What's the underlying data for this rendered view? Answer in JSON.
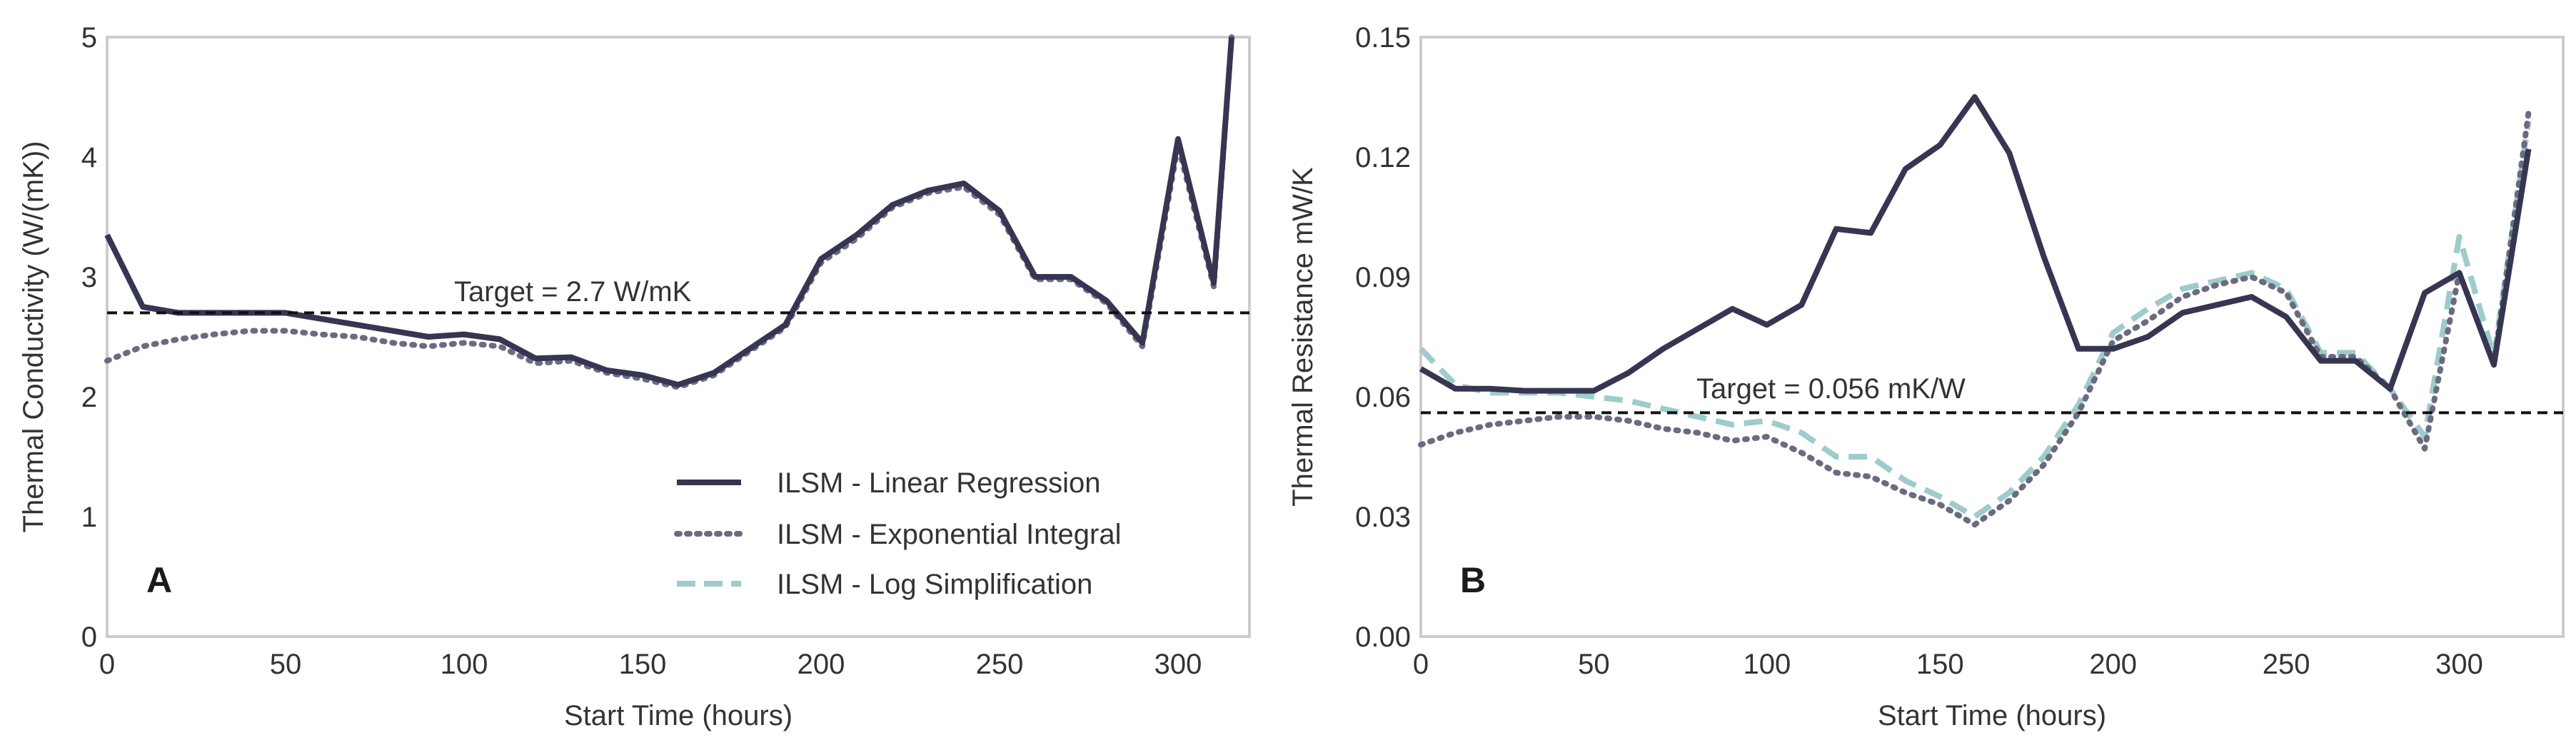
{
  "colors": {
    "linear": "#363652",
    "exponential": "#6b6b80",
    "log": "#9ecbcb",
    "target": "#111111",
    "frame": "#cccccc",
    "text": "#333333"
  },
  "legend": {
    "linear": "ILSM - Linear Regression",
    "exponential": "ILSM - Exponential Integral",
    "log": "ILSM - Log Simplification"
  },
  "chart_data": [
    {
      "id": "A",
      "type": "line",
      "panel_label": "A",
      "title": "",
      "xlabel": "Start Time (hours)",
      "ylabel": "Thermal Conductivity (W/(mK))",
      "xlim": [
        0,
        320
      ],
      "ylim": [
        0,
        5
      ],
      "xticks": [
        0,
        50,
        100,
        150,
        200,
        250,
        300
      ],
      "yticks": [
        0,
        1,
        2,
        3,
        4,
        5
      ],
      "ytick_labels": [
        "0",
        "1",
        "2",
        "3",
        "4",
        "5"
      ],
      "grid": false,
      "legend_position": "lower-right",
      "target": {
        "value": 2.7,
        "label": "Target = 2.7 W/mK"
      },
      "series": [
        {
          "key": "linear",
          "name": "ILSM - Linear Regression",
          "style": "solid",
          "x": [
            0,
            10,
            20,
            30,
            40,
            50,
            60,
            70,
            80,
            90,
            100,
            110,
            120,
            130,
            140,
            150,
            160,
            170,
            180,
            190,
            200,
            210,
            220,
            230,
            240,
            250,
            260,
            270,
            280,
            290,
            300,
            310,
            315
          ],
          "y": [
            3.35,
            2.75,
            2.7,
            2.7,
            2.7,
            2.7,
            2.65,
            2.6,
            2.55,
            2.5,
            2.52,
            2.48,
            2.32,
            2.33,
            2.22,
            2.18,
            2.1,
            2.2,
            2.4,
            2.6,
            3.15,
            3.35,
            3.6,
            3.72,
            3.78,
            3.55,
            3.0,
            3.0,
            2.8,
            2.45,
            4.15,
            2.95,
            5.0
          ]
        },
        {
          "key": "exponential",
          "name": "ILSM - Exponential Integral",
          "style": "dotted",
          "x": [
            0,
            10,
            20,
            30,
            40,
            50,
            60,
            70,
            80,
            90,
            100,
            110,
            120,
            130,
            140,
            150,
            160,
            170,
            180,
            190,
            200,
            210,
            220,
            230,
            240,
            250,
            260,
            270,
            280,
            290,
            300,
            310,
            315
          ],
          "y": [
            2.3,
            2.42,
            2.48,
            2.52,
            2.55,
            2.55,
            2.52,
            2.5,
            2.45,
            2.42,
            2.45,
            2.42,
            2.28,
            2.3,
            2.2,
            2.15,
            2.08,
            2.18,
            2.38,
            2.58,
            3.12,
            3.32,
            3.58,
            3.7,
            3.75,
            3.52,
            2.98,
            2.98,
            2.78,
            2.42,
            4.1,
            2.92,
            5.0
          ]
        },
        {
          "key": "log",
          "name": "ILSM - Log Simplification",
          "style": "dashed",
          "x": [
            0,
            10,
            20,
            30,
            40,
            50,
            60,
            70,
            80,
            90,
            100,
            110,
            120,
            130,
            140,
            150,
            160,
            170,
            180,
            190,
            200,
            210,
            220,
            230,
            240,
            250,
            260,
            270,
            280,
            290,
            300,
            310,
            315
          ],
          "y": [
            3.35,
            2.75,
            2.7,
            2.7,
            2.7,
            2.7,
            2.65,
            2.6,
            2.55,
            2.5,
            2.52,
            2.48,
            2.32,
            2.33,
            2.22,
            2.18,
            2.1,
            2.2,
            2.4,
            2.6,
            3.15,
            3.35,
            3.6,
            3.72,
            3.78,
            3.55,
            3.0,
            3.0,
            2.8,
            2.45,
            4.15,
            2.95,
            5.0
          ]
        }
      ]
    },
    {
      "id": "B",
      "type": "line",
      "panel_label": "B",
      "title": "",
      "xlabel": "Start Time (hours)",
      "ylabel": "Thermal Resistance mW/K",
      "xlim": [
        0,
        330
      ],
      "ylim": [
        0,
        0.15
      ],
      "xticks": [
        0,
        50,
        100,
        150,
        200,
        250,
        300
      ],
      "yticks": [
        0,
        0.03,
        0.06,
        0.09,
        0.12,
        0.15
      ],
      "ytick_labels": [
        "0.00",
        "0.03",
        "0.06",
        "0.09",
        "0.12",
        "0.15"
      ],
      "grid": false,
      "target": {
        "value": 0.056,
        "label": "Target = 0.056 mK/W"
      },
      "series": [
        {
          "key": "linear",
          "name": "ILSM - Linear Regression",
          "style": "solid",
          "x": [
            0,
            10,
            20,
            30,
            40,
            50,
            60,
            70,
            80,
            90,
            100,
            110,
            120,
            130,
            140,
            150,
            160,
            170,
            180,
            190,
            200,
            210,
            220,
            230,
            240,
            250,
            260,
            270,
            280,
            290,
            300,
            310,
            320
          ],
          "y": [
            0.067,
            0.062,
            0.062,
            0.0615,
            0.0615,
            0.0615,
            0.066,
            0.072,
            0.077,
            0.082,
            0.078,
            0.083,
            0.102,
            0.101,
            0.117,
            0.123,
            0.135,
            0.121,
            0.095,
            0.072,
            0.072,
            0.075,
            0.081,
            0.083,
            0.085,
            0.08,
            0.069,
            0.069,
            0.062,
            0.086,
            0.091,
            0.068,
            0.122
          ]
        },
        {
          "key": "exponential",
          "name": "ILSM - Exponential Integral",
          "style": "dotted",
          "x": [
            0,
            10,
            20,
            30,
            40,
            50,
            60,
            70,
            80,
            90,
            100,
            110,
            120,
            130,
            140,
            150,
            160,
            170,
            180,
            190,
            200,
            210,
            220,
            230,
            240,
            250,
            260,
            270,
            280,
            290,
            300,
            310,
            320
          ],
          "y": [
            0.048,
            0.051,
            0.053,
            0.054,
            0.055,
            0.055,
            0.054,
            0.052,
            0.051,
            0.049,
            0.05,
            0.046,
            0.041,
            0.04,
            0.036,
            0.033,
            0.028,
            0.034,
            0.043,
            0.056,
            0.074,
            0.079,
            0.085,
            0.088,
            0.09,
            0.086,
            0.07,
            0.07,
            0.062,
            0.047,
            0.091,
            0.068,
            0.131
          ]
        },
        {
          "key": "log",
          "name": "ILSM - Log Simplification",
          "style": "dashed",
          "x": [
            0,
            10,
            20,
            30,
            40,
            50,
            60,
            70,
            80,
            90,
            100,
            110,
            120,
            130,
            140,
            150,
            160,
            170,
            180,
            190,
            200,
            210,
            220,
            230,
            240,
            250,
            260,
            270,
            280,
            290,
            300,
            310,
            320
          ],
          "y": [
            0.072,
            0.063,
            0.061,
            0.061,
            0.061,
            0.06,
            0.059,
            0.057,
            0.055,
            0.053,
            0.054,
            0.051,
            0.045,
            0.045,
            0.039,
            0.035,
            0.03,
            0.036,
            0.045,
            0.058,
            0.076,
            0.082,
            0.087,
            0.089,
            0.091,
            0.087,
            0.071,
            0.071,
            0.062,
            0.05,
            0.1,
            0.07,
            0.129
          ]
        }
      ]
    }
  ]
}
